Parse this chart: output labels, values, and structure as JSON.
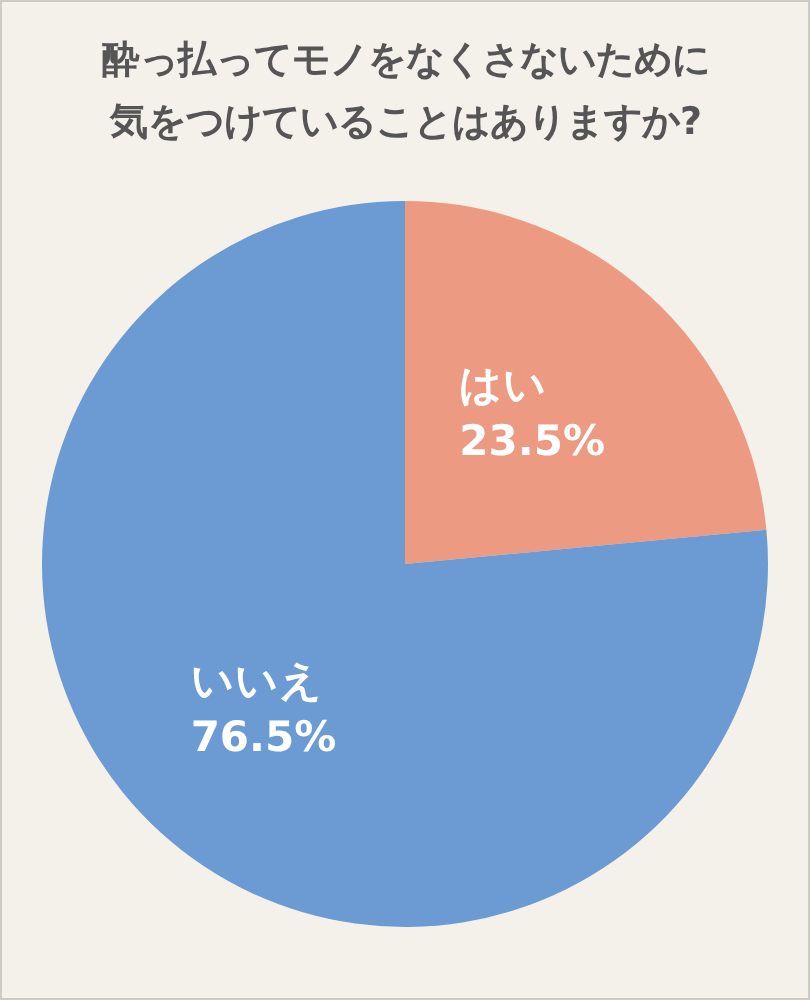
{
  "chart_data": {
    "type": "pie",
    "title": "酔っ払ってモノをなくさないために気をつけていることはありますか?",
    "categories": [
      "はい",
      "いいえ"
    ],
    "values": [
      23.5,
      76.5
    ],
    "colors": [
      "#ec9a82",
      "#6b9bd2"
    ],
    "value_labels": [
      "23.5%",
      "76.5%"
    ],
    "legend": false
  }
}
